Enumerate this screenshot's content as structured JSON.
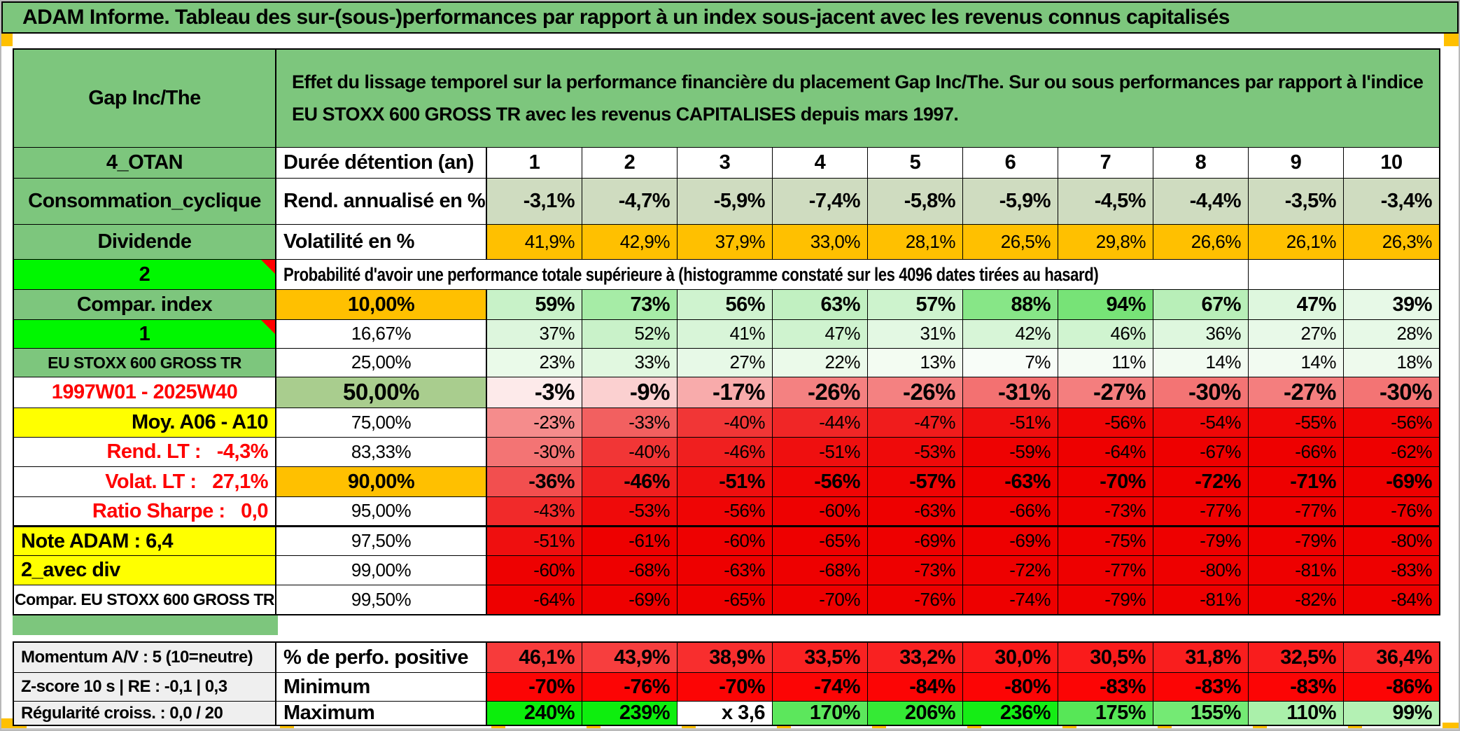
{
  "report": {
    "title": "ADAM Informe. Tableau des sur-(sous-)performances par rapport à un index sous-jacent avec les revenus connus capitalisés"
  },
  "header": {
    "security": "Gap Inc/The",
    "description": "Effet du lissage temporel sur la performance financière du placement Gap Inc/The. Sur ou sous performances par rapport à l'indice EU STOXX 600 GROSS TR avec les revenus CAPITALISES depuis mars 1997."
  },
  "colors": {
    "theme_green": "#7dc67d",
    "bright_green": "#00f700",
    "orange": "#ffc000",
    "yellow": "#ffff00",
    "sage": "#a9cd8e",
    "annual_return_row": "#cfdcc0",
    "red_text": "#fe0000",
    "gray_label": "#efefef",
    "pure_red": "#ee0000",
    "comment_marker": "#ff0000"
  },
  "grid": {
    "columns": [
      "1",
      "2",
      "3",
      "4",
      "5",
      "6",
      "7",
      "8",
      "9",
      "10"
    ],
    "rows": [
      {
        "id": "duration",
        "left": {
          "text": "4_OTAN",
          "bg": "#7dc67d",
          "align": "c",
          "bold": true,
          "size": "l"
        },
        "mid": {
          "text": "Durée détention (an)",
          "bg": "#ffffff",
          "align": "l",
          "bold": true,
          "size": "l"
        },
        "values": [
          "1",
          "2",
          "3",
          "4",
          "5",
          "6",
          "7",
          "8",
          "9",
          "10"
        ],
        "bgs": [
          "#ffffff",
          "#ffffff",
          "#ffffff",
          "#ffffff",
          "#ffffff",
          "#ffffff",
          "#ffffff",
          "#ffffff",
          "#ffffff",
          "#ffffff"
        ],
        "cells_align": "c",
        "cells_bold": true,
        "cells_size": "l"
      },
      {
        "id": "annual-return",
        "left": {
          "text": "Consommation_cyclique",
          "bg": "#7dc67d",
          "align": "c",
          "bold": true,
          "size": "l"
        },
        "mid": {
          "text": "Rend. annualisé en %",
          "bg": "#ffffff",
          "align": "l",
          "bold": true,
          "size": "l"
        },
        "values": [
          "-3,1%",
          "-4,7%",
          "-5,9%",
          "-7,4%",
          "-5,8%",
          "-5,9%",
          "-4,5%",
          "-4,4%",
          "-3,5%",
          "-3,4%"
        ],
        "bgs": [
          "#cfdcc0",
          "#cfdcc0",
          "#cfdcc0",
          "#cfdcc0",
          "#cfdcc0",
          "#cfdcc0",
          "#cfdcc0",
          "#cfdcc0",
          "#cfdcc0",
          "#cfdcc0"
        ],
        "cells_align": "r",
        "cells_bold": true,
        "cells_size": "l"
      },
      {
        "id": "volatility",
        "left": {
          "text": "Dividende",
          "bg": "#7dc67d",
          "align": "c",
          "bold": true,
          "size": "l"
        },
        "mid": {
          "text": "Volatilité en %",
          "bg": "#ffffff",
          "align": "l",
          "bold": true,
          "size": "l"
        },
        "values": [
          "41,9%",
          "42,9%",
          "37,9%",
          "33,0%",
          "28,1%",
          "26,5%",
          "29,8%",
          "26,6%",
          "26,1%",
          "26,3%"
        ],
        "bgs": [
          "#ffc000",
          "#ffc000",
          "#ffc000",
          "#ffc000",
          "#ffc000",
          "#ffc000",
          "#ffc000",
          "#ffc000",
          "#ffc000",
          "#ffc000"
        ],
        "cells_align": "r",
        "cells_bold": false,
        "cells_size": "m"
      },
      {
        "id": "probability-banner",
        "left": {
          "text": "2",
          "bg": "#00f700",
          "align": "c",
          "bold": true,
          "size": "l",
          "comment": true
        },
        "banner": {
          "text": "Probabilité d'avoir une performance totale supérieure à (histogramme constaté sur les 4096 dates tirées au hasard)",
          "span": 9,
          "empty_after": 2
        }
      },
      {
        "id": "q-10",
        "left": {
          "text": "Compar. index",
          "bg": "#7dc67d",
          "align": "c",
          "bold": true,
          "size": "l"
        },
        "mid": {
          "text": "10,00%",
          "bg": "#ffc000",
          "align": "c",
          "bold": true,
          "size": "l"
        },
        "values": [
          "59%",
          "73%",
          "56%",
          "63%",
          "57%",
          "88%",
          "94%",
          "67%",
          "47%",
          "39%"
        ],
        "bgs": [
          "#c8f2c8",
          "#a6eca6",
          "#cff3cf",
          "#c1f0c1",
          "#cdf3cd",
          "#87e687",
          "#77e377",
          "#b8efb8",
          "#def7de",
          "#e7f9e7"
        ],
        "cells_align": "r",
        "cells_bold": true,
        "cells_size": "l"
      },
      {
        "id": "q-16-67",
        "left": {
          "text": "1",
          "bg": "#00f700",
          "align": "c",
          "bold": true,
          "size": "l",
          "comment": true
        },
        "mid": {
          "text": "16,67%",
          "bg": "#ffffff",
          "align": "c",
          "bold": false,
          "size": "m"
        },
        "values": [
          "37%",
          "52%",
          "41%",
          "47%",
          "31%",
          "42%",
          "46%",
          "36%",
          "27%",
          "28%"
        ],
        "bgs": [
          "#ddf6dd",
          "#c9f2c9",
          "#d8f5d8",
          "#cff3cf",
          "#e3f8e3",
          "#d7f5d7",
          "#d0f4d0",
          "#def7de",
          "#e8f9e8",
          "#e7f9e7"
        ],
        "cells_align": "r",
        "cells_bold": false,
        "cells_size": "m"
      },
      {
        "id": "q-25",
        "left": {
          "text": "EU STOXX 600 GROSS TR",
          "bg": "#7dc67d",
          "align": "c",
          "bold": true,
          "size": "s"
        },
        "mid": {
          "text": "25,00%",
          "bg": "#ffffff",
          "align": "c",
          "bold": false,
          "size": "m"
        },
        "values": [
          "23%",
          "33%",
          "27%",
          "22%",
          "13%",
          "7%",
          "11%",
          "14%",
          "14%",
          "18%"
        ],
        "bgs": [
          "#eafae9",
          "#e1f8e0",
          "#e7f9e7",
          "#ebfaea",
          "#f3fcf2",
          "#f8fdf8",
          "#f5fcf4",
          "#f2fbf1",
          "#f2fbf1",
          "#eefaed"
        ],
        "cells_align": "r",
        "cells_bold": false,
        "cells_size": "m"
      },
      {
        "id": "q-50",
        "left": {
          "text": "1997W01 - 2025W40",
          "bg": "#ffffff",
          "color": "#fe0000",
          "align": "c",
          "bold": true,
          "size": "l"
        },
        "mid": {
          "text": "50,00%",
          "bg": "#a9cd8e",
          "align": "c",
          "bold": true,
          "size": "xl"
        },
        "values": [
          "-3%",
          "-9%",
          "-17%",
          "-26%",
          "-26%",
          "-31%",
          "-27%",
          "-30%",
          "-27%",
          "-30%"
        ],
        "bgs": [
          "#fdeaea",
          "#fbd0d0",
          "#f8abab",
          "#f48181",
          "#f48181",
          "#f37171",
          "#f47e7e",
          "#f37474",
          "#f47e7e",
          "#f37474"
        ],
        "cells_align": "r",
        "cells_bold": true,
        "cells_size": "xl"
      },
      {
        "id": "q-75",
        "left": {
          "text": "Moy. A06 - A10",
          "bg": "#ffff00",
          "align": "r",
          "bold": true,
          "size": "l"
        },
        "mid": {
          "text": "75,00%",
          "bg": "#ffffff",
          "align": "c",
          "bold": false,
          "size": "m"
        },
        "values": [
          "-23%",
          "-33%",
          "-40%",
          "-44%",
          "-47%",
          "-51%",
          "-56%",
          "-54%",
          "-55%",
          "-56%"
        ],
        "bgs": [
          "#f58c8c",
          "#f26060",
          "#f13636",
          "#f02626",
          "#f01c1c",
          "#ef0f0f",
          "#ef0505",
          "#ef0808",
          "#ef0606",
          "#ef0505"
        ],
        "cells_align": "r",
        "cells_bold": false,
        "cells_size": "m"
      },
      {
        "id": "q-83-33",
        "left": {
          "text": "Rend. LT :   -4,3%",
          "bg": "#ffffff",
          "color": "#fe0000",
          "align": "r",
          "bold": true,
          "size": "l"
        },
        "mid": {
          "text": "83,33%",
          "bg": "#ffffff",
          "align": "c",
          "bold": false,
          "size": "m"
        },
        "values": [
          "-30%",
          "-40%",
          "-46%",
          "-51%",
          "-53%",
          "-59%",
          "-64%",
          "-67%",
          "-66%",
          "-62%"
        ],
        "bgs": [
          "#f37474",
          "#f13636",
          "#f01f1f",
          "#ef0f0f",
          "#ef0a0a",
          "#ee0202",
          "#ee0000",
          "#ee0000",
          "#ee0000",
          "#ee0000"
        ],
        "cells_align": "r",
        "cells_bold": false,
        "cells_size": "m"
      },
      {
        "id": "q-90",
        "left": {
          "text": "Volat. LT :   27,1%",
          "bg": "#ffffff",
          "color": "#fe0000",
          "align": "r",
          "bold": true,
          "size": "l"
        },
        "mid": {
          "text": "90,00%",
          "bg": "#ffc000",
          "align": "c",
          "bold": true,
          "size": "l"
        },
        "values": [
          "-36%",
          "-46%",
          "-51%",
          "-56%",
          "-57%",
          "-63%",
          "-70%",
          "-72%",
          "-71%",
          "-69%"
        ],
        "bgs": [
          "#f24f4f",
          "#f01f1f",
          "#ef0f0f",
          "#ef0505",
          "#ef0404",
          "#ee0000",
          "#ee0000",
          "#ee0000",
          "#ee0000",
          "#ee0000"
        ],
        "cells_align": "r",
        "cells_bold": true,
        "cells_size": "l"
      },
      {
        "id": "q-95",
        "left": {
          "text": "Ratio Sharpe :   0,0",
          "bg": "#ffffff",
          "color": "#fe0000",
          "align": "r",
          "bold": true,
          "size": "l"
        },
        "mid": {
          "text": "95,00%",
          "bg": "#ffffff",
          "align": "c",
          "bold": false,
          "size": "m"
        },
        "values": [
          "-43%",
          "-53%",
          "-56%",
          "-60%",
          "-63%",
          "-66%",
          "-73%",
          "-77%",
          "-77%",
          "-76%"
        ],
        "bgs": [
          "#f12a2a",
          "#ef0a0a",
          "#ef0505",
          "#ee0101",
          "#ee0000",
          "#ee0000",
          "#ee0000",
          "#ee0000",
          "#ee0000",
          "#ee0000"
        ],
        "cells_align": "r",
        "cells_bold": false,
        "cells_size": "m"
      },
      {
        "id": "q-97-50",
        "thick_top": true,
        "left": {
          "text": "Note ADAM : 6,4",
          "bg": "#ffff00",
          "align": "l",
          "bold": true,
          "size": "l"
        },
        "mid": {
          "text": "97,50%",
          "bg": "#ffffff",
          "align": "c",
          "bold": false,
          "size": "m"
        },
        "values": [
          "-51%",
          "-61%",
          "-60%",
          "-65%",
          "-69%",
          "-69%",
          "-75%",
          "-79%",
          "-79%",
          "-80%"
        ],
        "bgs": [
          "#ef0f0f",
          "#ee0000",
          "#ee0101",
          "#ee0000",
          "#ee0000",
          "#ee0000",
          "#ee0000",
          "#ee0000",
          "#ee0000",
          "#ee0000"
        ],
        "cells_align": "r",
        "cells_bold": false,
        "cells_size": "m"
      },
      {
        "id": "q-99",
        "left": {
          "text": "2_avec div",
          "bg": "#ffff00",
          "align": "l",
          "bold": true,
          "size": "l"
        },
        "mid": {
          "text": "99,00%",
          "bg": "#ffffff",
          "align": "c",
          "bold": false,
          "size": "m"
        },
        "values": [
          "-60%",
          "-68%",
          "-63%",
          "-68%",
          "-73%",
          "-72%",
          "-77%",
          "-80%",
          "-81%",
          "-83%"
        ],
        "bgs": [
          "#ee0101",
          "#ee0000",
          "#ee0000",
          "#ee0000",
          "#ee0000",
          "#ee0000",
          "#ee0000",
          "#ee0000",
          "#ee0000",
          "#ee0000"
        ],
        "cells_align": "r",
        "cells_bold": false,
        "cells_size": "m"
      },
      {
        "id": "q-99-50",
        "left": {
          "text": "Compar. EU STOXX 600 GROSS TR",
          "bg": "#ffffff",
          "align": "c",
          "bold": true,
          "size": "s"
        },
        "mid": {
          "text": "99,50%",
          "bg": "#ffffff",
          "align": "c",
          "bold": false,
          "size": "m"
        },
        "values": [
          "-64%",
          "-69%",
          "-65%",
          "-70%",
          "-76%",
          "-74%",
          "-79%",
          "-81%",
          "-82%",
          "-84%"
        ],
        "bgs": [
          "#ee0000",
          "#ee0000",
          "#ee0000",
          "#ee0000",
          "#ee0000",
          "#ee0000",
          "#ee0000",
          "#ee0000",
          "#ee0000",
          "#ee0000"
        ],
        "cells_align": "r",
        "cells_bold": false,
        "cells_size": "m"
      }
    ]
  },
  "bottom": {
    "rows": [
      {
        "id": "positive-perf",
        "left": {
          "text": "Momentum A/V : 5 (10=neutre)",
          "bg": "#efefef",
          "align": "l",
          "bold": true,
          "size": "bl"
        },
        "mid": {
          "text": "% de perfo. positive",
          "bg": "#ffffff",
          "align": "l",
          "bold": true,
          "size": "l"
        },
        "values": [
          "46,1%",
          "43,9%",
          "38,9%",
          "33,5%",
          "33,2%",
          "30,0%",
          "30,5%",
          "31,8%",
          "32,5%",
          "36,4%"
        ],
        "bgs": [
          "#f73b3b",
          "#f73e3e",
          "#f82e2e",
          "#f92222",
          "#f92121",
          "#fa1919",
          "#fa1b1b",
          "#f91e1e",
          "#f91d1d",
          "#f82727"
        ],
        "cells_align": "r",
        "cells_bold": true,
        "cells_size": "l"
      },
      {
        "id": "minimum",
        "left": {
          "text": "Z-score 10 s | RE : -0,1 | 0,3",
          "bg": "#efefef",
          "align": "l",
          "bold": true,
          "size": "bl"
        },
        "mid": {
          "text": "Minimum",
          "bg": "#ffffff",
          "align": "l",
          "bold": true,
          "size": "l"
        },
        "values": [
          "-70%",
          "-76%",
          "-70%",
          "-74%",
          "-84%",
          "-80%",
          "-83%",
          "-83%",
          "-83%",
          "-86%"
        ],
        "bgs": [
          "#fc0505",
          "#fc0505",
          "#fc0505",
          "#fc0505",
          "#fc0505",
          "#fc0505",
          "#fc0505",
          "#fc0505",
          "#fc0505",
          "#fc0505"
        ],
        "cells_align": "r",
        "cells_bold": true,
        "cells_size": "l"
      },
      {
        "id": "maximum",
        "left": {
          "text": "Régularité croiss. : 0,0 / 20",
          "bg": "#efefef",
          "align": "l",
          "bold": true,
          "size": "bl"
        },
        "mid": {
          "text": "Maximum",
          "bg": "#ffffff",
          "align": "l",
          "bold": true,
          "size": "l"
        },
        "values": [
          "240%",
          "239%",
          "x 3,6",
          "170%",
          "206%",
          "236%",
          "175%",
          "155%",
          "110%",
          "99%"
        ],
        "bgs": [
          "#0cee0c",
          "#0eee0e",
          "#ffffff",
          "#5ce75c",
          "#35ea35",
          "#15ed15",
          "#57e757",
          "#74ea74",
          "#aaf0aa",
          "#b4f1b4"
        ],
        "cells_align": "r",
        "cells_bold": true,
        "cells_size": "l"
      }
    ]
  }
}
